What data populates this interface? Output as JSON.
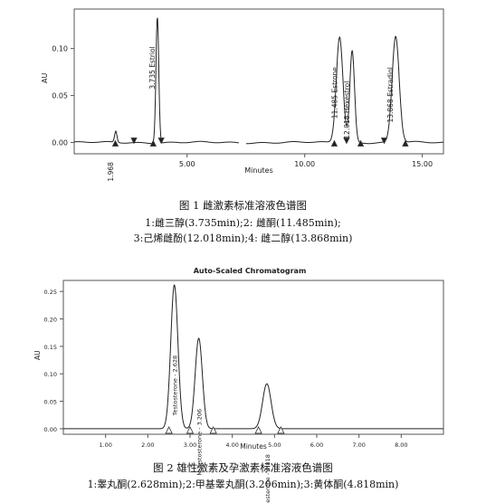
{
  "chart_data": [
    {
      "type": "line",
      "title": "",
      "xlabel": "Minutes",
      "ylabel": "AU",
      "xlim": [
        0.2,
        15.9
      ],
      "ylim": [
        -0.012,
        0.142
      ],
      "x_ticks": [
        "5.00",
        "10.00",
        "15.00"
      ],
      "y_ticks": [
        "0.00",
        "0.05",
        "0.10"
      ],
      "baseline_gap": [
        7.2,
        7.5
      ],
      "peaks": [
        {
          "rt": 1.968,
          "height": 0.012,
          "width": 0.05,
          "label": "1.968"
        },
        {
          "rt": 3.735,
          "height": 0.135,
          "width": 0.06,
          "label": "3.735 Estriol"
        },
        {
          "rt": 11.485,
          "height": 0.113,
          "width": 0.14,
          "label": "11.485 Estrone"
        },
        {
          "rt": 12.018,
          "height": 0.098,
          "width": 0.1,
          "label": "12.018 Hexestrol"
        },
        {
          "rt": 13.868,
          "height": 0.113,
          "width": 0.15,
          "label": "13.868 Estradiol"
        }
      ],
      "integration_markers": [
        1.95,
        2.74,
        3.56,
        3.9,
        11.26,
        11.78,
        12.38,
        13.38,
        14.28
      ]
    },
    {
      "type": "line",
      "title": "Auto-Scaled Chromatogram",
      "xlabel": "Minutes",
      "ylabel": "AU",
      "xlim": [
        0.0,
        9.0
      ],
      "ylim": [
        -0.01,
        0.27
      ],
      "x_ticks": [
        "1.00",
        "2.00",
        "3.00",
        "4.00",
        "5.00",
        "6.00",
        "7.00",
        "8.00"
      ],
      "y_ticks": [
        "0.00",
        "0.05",
        "0.10",
        "0.15",
        "0.20",
        "0.25"
      ],
      "peaks": [
        {
          "rt": 2.628,
          "height": 0.262,
          "width": 0.085,
          "label": "Testosterone - 2.628"
        },
        {
          "rt": 3.206,
          "height": 0.165,
          "width": 0.085,
          "label": "M-Testosterone - 3.206"
        },
        {
          "rt": 4.818,
          "height": 0.082,
          "width": 0.1,
          "label": "Progesterone - 4.818"
        }
      ],
      "integration_markers": [
        2.5,
        3.0,
        3.55,
        4.62,
        5.15
      ]
    }
  ],
  "captions": {
    "fig1_title": "图 1  雌激素标准溶液色谱图",
    "fig1_line1": "1:雌三醇(3.735min);2: 雌酮(11.485min);",
    "fig1_line2": "3:己烯雌酚(12.018min);4: 雌二醇(13.868min)",
    "fig2_title": "图 2   雄性激素及孕激素标准溶液色谱图",
    "fig2_line1": "1:睾丸酮(2.628min);2:甲基睾丸酮(3.206min);3:黄体酮(4.818min)"
  }
}
